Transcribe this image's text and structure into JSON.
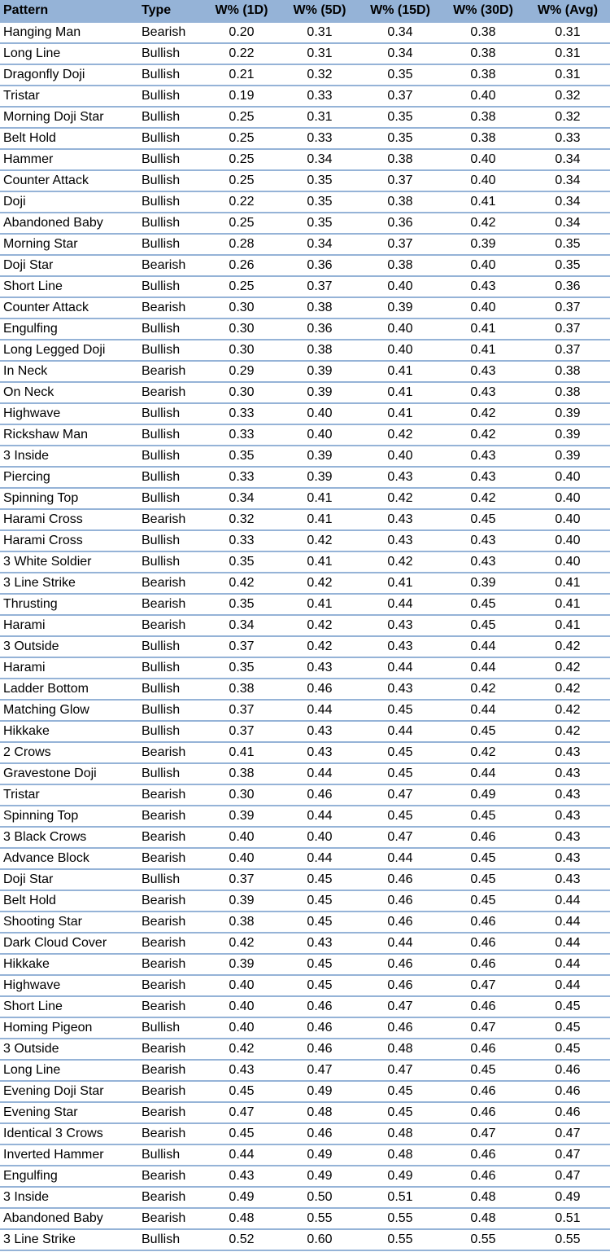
{
  "headers": [
    "Pattern",
    "Type",
    "W% (1D)",
    "W% (5D)",
    "W% (15D)",
    "W% (30D)",
    "W% (Avg)"
  ],
  "rows": [
    [
      "Hanging Man",
      "Bearish",
      "0.20",
      "0.31",
      "0.34",
      "0.38",
      "0.31"
    ],
    [
      "Long Line",
      "Bullish",
      "0.22",
      "0.31",
      "0.34",
      "0.38",
      "0.31"
    ],
    [
      "Dragonfly Doji",
      "Bullish",
      "0.21",
      "0.32",
      "0.35",
      "0.38",
      "0.31"
    ],
    [
      "Tristar",
      "Bullish",
      "0.19",
      "0.33",
      "0.37",
      "0.40",
      "0.32"
    ],
    [
      "Morning Doji Star",
      "Bullish",
      "0.25",
      "0.31",
      "0.35",
      "0.38",
      "0.32"
    ],
    [
      "Belt Hold",
      "Bullish",
      "0.25",
      "0.33",
      "0.35",
      "0.38",
      "0.33"
    ],
    [
      "Hammer",
      "Bullish",
      "0.25",
      "0.34",
      "0.38",
      "0.40",
      "0.34"
    ],
    [
      "Counter Attack",
      "Bullish",
      "0.25",
      "0.35",
      "0.37",
      "0.40",
      "0.34"
    ],
    [
      "Doji",
      "Bullish",
      "0.22",
      "0.35",
      "0.38",
      "0.41",
      "0.34"
    ],
    [
      "Abandoned Baby",
      "Bullish",
      "0.25",
      "0.35",
      "0.36",
      "0.42",
      "0.34"
    ],
    [
      "Morning Star",
      "Bullish",
      "0.28",
      "0.34",
      "0.37",
      "0.39",
      "0.35"
    ],
    [
      "Doji Star",
      "Bearish",
      "0.26",
      "0.36",
      "0.38",
      "0.40",
      "0.35"
    ],
    [
      "Short Line",
      "Bullish",
      "0.25",
      "0.37",
      "0.40",
      "0.43",
      "0.36"
    ],
    [
      "Counter Attack",
      "Bearish",
      "0.30",
      "0.38",
      "0.39",
      "0.40",
      "0.37"
    ],
    [
      "Engulfing",
      "Bullish",
      "0.30",
      "0.36",
      "0.40",
      "0.41",
      "0.37"
    ],
    [
      "Long Legged Doji",
      "Bullish",
      "0.30",
      "0.38",
      "0.40",
      "0.41",
      "0.37"
    ],
    [
      "In Neck",
      "Bearish",
      "0.29",
      "0.39",
      "0.41",
      "0.43",
      "0.38"
    ],
    [
      "On Neck",
      "Bearish",
      "0.30",
      "0.39",
      "0.41",
      "0.43",
      "0.38"
    ],
    [
      "Highwave",
      "Bullish",
      "0.33",
      "0.40",
      "0.41",
      "0.42",
      "0.39"
    ],
    [
      "Rickshaw Man",
      "Bullish",
      "0.33",
      "0.40",
      "0.42",
      "0.42",
      "0.39"
    ],
    [
      "3 Inside",
      "Bullish",
      "0.35",
      "0.39",
      "0.40",
      "0.43",
      "0.39"
    ],
    [
      "Piercing",
      "Bullish",
      "0.33",
      "0.39",
      "0.43",
      "0.43",
      "0.40"
    ],
    [
      "Spinning Top",
      "Bullish",
      "0.34",
      "0.41",
      "0.42",
      "0.42",
      "0.40"
    ],
    [
      "Harami Cross",
      "Bearish",
      "0.32",
      "0.41",
      "0.43",
      "0.45",
      "0.40"
    ],
    [
      "Harami Cross",
      "Bullish",
      "0.33",
      "0.42",
      "0.43",
      "0.43",
      "0.40"
    ],
    [
      "3 White Soldier",
      "Bullish",
      "0.35",
      "0.41",
      "0.42",
      "0.43",
      "0.40"
    ],
    [
      "3 Line Strike",
      "Bearish",
      "0.42",
      "0.42",
      "0.41",
      "0.39",
      "0.41"
    ],
    [
      "Thrusting",
      "Bearish",
      "0.35",
      "0.41",
      "0.44",
      "0.45",
      "0.41"
    ],
    [
      "Harami",
      "Bearish",
      "0.34",
      "0.42",
      "0.43",
      "0.45",
      "0.41"
    ],
    [
      "3 Outside",
      "Bullish",
      "0.37",
      "0.42",
      "0.43",
      "0.44",
      "0.42"
    ],
    [
      "Harami",
      "Bullish",
      "0.35",
      "0.43",
      "0.44",
      "0.44",
      "0.42"
    ],
    [
      "Ladder Bottom",
      "Bullish",
      "0.38",
      "0.46",
      "0.43",
      "0.42",
      "0.42"
    ],
    [
      "Matching Glow",
      "Bullish",
      "0.37",
      "0.44",
      "0.45",
      "0.44",
      "0.42"
    ],
    [
      "Hikkake",
      "Bullish",
      "0.37",
      "0.43",
      "0.44",
      "0.45",
      "0.42"
    ],
    [
      "2 Crows",
      "Bearish",
      "0.41",
      "0.43",
      "0.45",
      "0.42",
      "0.43"
    ],
    [
      "Gravestone Doji",
      "Bullish",
      "0.38",
      "0.44",
      "0.45",
      "0.44",
      "0.43"
    ],
    [
      "Tristar",
      "Bearish",
      "0.30",
      "0.46",
      "0.47",
      "0.49",
      "0.43"
    ],
    [
      "Spinning Top",
      "Bearish",
      "0.39",
      "0.44",
      "0.45",
      "0.45",
      "0.43"
    ],
    [
      "3 Black Crows",
      "Bearish",
      "0.40",
      "0.40",
      "0.47",
      "0.46",
      "0.43"
    ],
    [
      "Advance Block",
      "Bearish",
      "0.40",
      "0.44",
      "0.44",
      "0.45",
      "0.43"
    ],
    [
      "Doji Star",
      "Bullish",
      "0.37",
      "0.45",
      "0.46",
      "0.45",
      "0.43"
    ],
    [
      "Belt Hold",
      "Bearish",
      "0.39",
      "0.45",
      "0.46",
      "0.45",
      "0.44"
    ],
    [
      "Shooting Star",
      "Bearish",
      "0.38",
      "0.45",
      "0.46",
      "0.46",
      "0.44"
    ],
    [
      "Dark Cloud Cover",
      "Bearish",
      "0.42",
      "0.43",
      "0.44",
      "0.46",
      "0.44"
    ],
    [
      "Hikkake",
      "Bearish",
      "0.39",
      "0.45",
      "0.46",
      "0.46",
      "0.44"
    ],
    [
      "Highwave",
      "Bearish",
      "0.40",
      "0.45",
      "0.46",
      "0.47",
      "0.44"
    ],
    [
      "Short Line",
      "Bearish",
      "0.40",
      "0.46",
      "0.47",
      "0.46",
      "0.45"
    ],
    [
      "Homing Pigeon",
      "Bullish",
      "0.40",
      "0.46",
      "0.46",
      "0.47",
      "0.45"
    ],
    [
      "3 Outside",
      "Bearish",
      "0.42",
      "0.46",
      "0.48",
      "0.46",
      "0.45"
    ],
    [
      "Long Line",
      "Bearish",
      "0.43",
      "0.47",
      "0.47",
      "0.45",
      "0.46"
    ],
    [
      "Evening Doji Star",
      "Bearish",
      "0.45",
      "0.49",
      "0.45",
      "0.46",
      "0.46"
    ],
    [
      "Evening Star",
      "Bearish",
      "0.47",
      "0.48",
      "0.45",
      "0.46",
      "0.46"
    ],
    [
      "Identical 3 Crows",
      "Bearish",
      "0.45",
      "0.46",
      "0.48",
      "0.47",
      "0.47"
    ],
    [
      "Inverted Hammer",
      "Bullish",
      "0.44",
      "0.49",
      "0.48",
      "0.46",
      "0.47"
    ],
    [
      "Engulfing",
      "Bearish",
      "0.43",
      "0.49",
      "0.49",
      "0.46",
      "0.47"
    ],
    [
      "3 Inside",
      "Bearish",
      "0.49",
      "0.50",
      "0.51",
      "0.48",
      "0.49"
    ],
    [
      "Abandoned Baby",
      "Bearish",
      "0.48",
      "0.55",
      "0.55",
      "0.48",
      "0.51"
    ],
    [
      "3 Line Strike",
      "Bullish",
      "0.52",
      "0.60",
      "0.55",
      "0.55",
      "0.55"
    ]
  ],
  "colors": {
    "header_background": "#95b3d7",
    "row_divider": "#95b3d7",
    "text": "#000000",
    "background": "#ffffff"
  }
}
